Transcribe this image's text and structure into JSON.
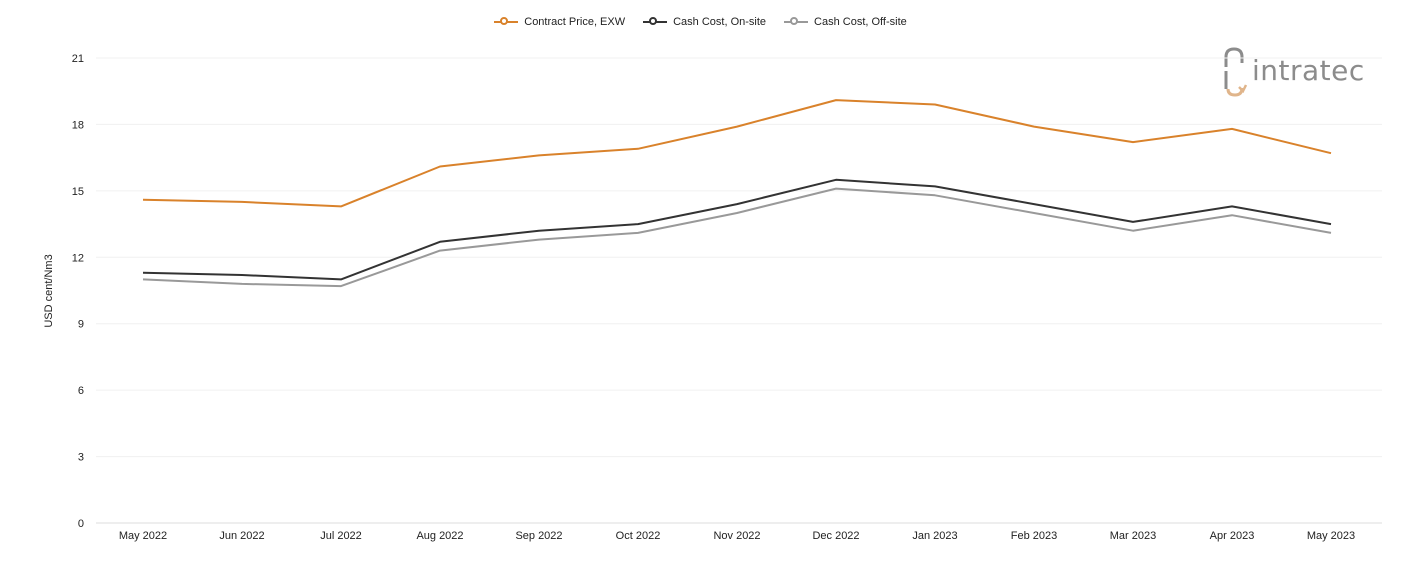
{
  "legend": {
    "items": [
      {
        "label": "Contract Price, EXW",
        "color": "#d9822b"
      },
      {
        "label": "Cash Cost, On-site",
        "color": "#333333"
      },
      {
        "label": "Cash Cost, Off-site",
        "color": "#999999"
      }
    ]
  },
  "watermark": {
    "text": "intratec",
    "icon": "intratec-logo-icon",
    "accent_color": "#e0b58b",
    "text_color": "#8c8c8c"
  },
  "chart_data": {
    "type": "line",
    "ylabel": "USD cent/Nm3",
    "xlabel": "",
    "ylim": [
      0,
      21
    ],
    "yticks": [
      0,
      3,
      6,
      9,
      12,
      15,
      18,
      21
    ],
    "grid": true,
    "legend_position": "top-center",
    "categories": [
      "May 2022",
      "Jun 2022",
      "Jul 2022",
      "Aug 2022",
      "Sep 2022",
      "Oct 2022",
      "Nov 2022",
      "Dec 2022",
      "Jan 2023",
      "Feb 2023",
      "Mar 2023",
      "Apr 2023",
      "May 2023"
    ],
    "series": [
      {
        "name": "Contract Price, EXW",
        "color": "#d9822b",
        "values": [
          14.6,
          14.5,
          14.3,
          16.1,
          16.6,
          16.9,
          17.9,
          19.1,
          18.9,
          17.9,
          17.2,
          17.8,
          16.7
        ]
      },
      {
        "name": "Cash Cost, On-site",
        "color": "#333333",
        "values": [
          11.3,
          11.2,
          11.0,
          12.7,
          13.2,
          13.5,
          14.4,
          15.5,
          15.2,
          14.4,
          13.6,
          14.3,
          13.5
        ]
      },
      {
        "name": "Cash Cost, Off-site",
        "color": "#999999",
        "values": [
          11.0,
          10.8,
          10.7,
          12.3,
          12.8,
          13.1,
          14.0,
          15.1,
          14.8,
          14.0,
          13.2,
          13.9,
          13.1
        ]
      }
    ]
  }
}
